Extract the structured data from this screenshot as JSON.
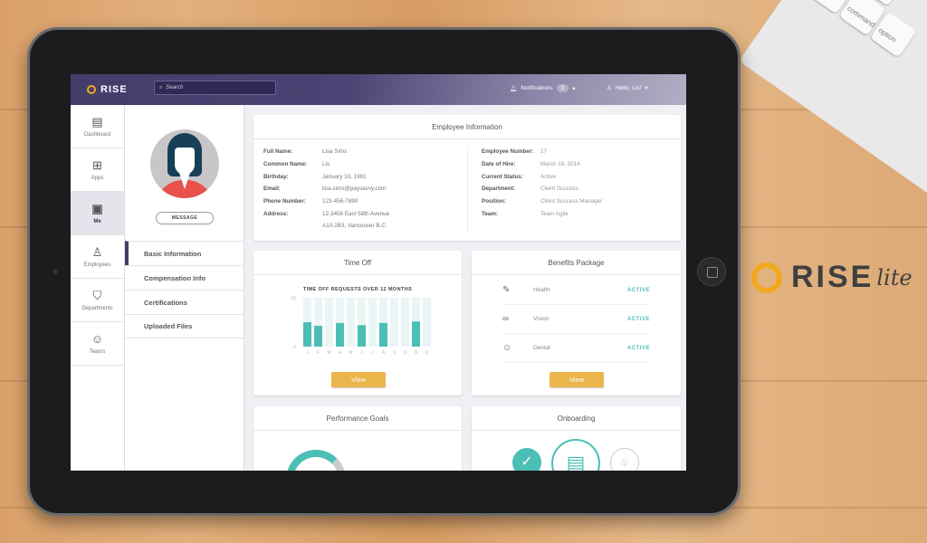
{
  "header": {
    "brand": "RISE",
    "search_placeholder": "Search",
    "notifications_label": "Notifications",
    "notifications_count": "0",
    "greeting": "Hello, Lis!"
  },
  "sidebar": {
    "items": [
      {
        "label": "Dashboard",
        "icon": "dashboard-icon",
        "glyph": "▤"
      },
      {
        "label": "Apps",
        "icon": "apps-icon",
        "glyph": "⊞"
      },
      {
        "label": "Me",
        "icon": "id-card-icon",
        "glyph": "▣",
        "active": true
      },
      {
        "label": "Employees",
        "icon": "person-icon",
        "glyph": "♙"
      },
      {
        "label": "Departments",
        "icon": "shield-icon",
        "glyph": "⛉"
      },
      {
        "label": "Teams",
        "icon": "team-icon",
        "glyph": "☺"
      }
    ]
  },
  "profile": {
    "message_button": "MESSAGE",
    "nav": [
      "Basic Information",
      "Compensation Info",
      "Certifications",
      "Uploaded Files"
    ]
  },
  "employee_info": {
    "title": "Employee Information",
    "left": [
      {
        "k": "Full Name:",
        "v": "Lisa Sims"
      },
      {
        "k": "Common Name:",
        "v": "Lis"
      },
      {
        "k": "Birthday:",
        "v": "January 10, 1991"
      },
      {
        "k": "Email:",
        "v": "lisa-sims@paysavvy.com"
      },
      {
        "k": "Phone Number:",
        "v": "123-456-7890"
      },
      {
        "k": "Address:",
        "v": "12-3456 East 58th Avenue"
      },
      {
        "k": "",
        "v": "A1A 2B3, Vancouver B.C."
      }
    ],
    "right": [
      {
        "k": "Employee Number:",
        "v": "17"
      },
      {
        "k": "Date of Hire:",
        "v": "March 18, 2014"
      },
      {
        "k": "Current Status:",
        "v": "Active"
      },
      {
        "k": "Department:",
        "v": "Client Success"
      },
      {
        "k": "Position:",
        "v": "Client Success Manager"
      },
      {
        "k": "Team:",
        "v": "Team Agile"
      }
    ]
  },
  "time_off": {
    "title": "Time Off",
    "view_label": "View"
  },
  "chart_data": {
    "type": "bar",
    "title": "TIME OFF REQUESTS OVER 12 MONTHS",
    "categories": [
      "J",
      "F",
      "M",
      "A",
      "M",
      "J",
      "J",
      "A",
      "S",
      "O",
      "N",
      "D"
    ],
    "values": [
      10,
      8.5,
      0,
      9.7,
      0,
      8.8,
      0,
      9.7,
      0,
      0,
      10.3,
      0
    ],
    "ylim": [
      0,
      20
    ],
    "yticks": [
      "0",
      "20"
    ],
    "color": "#4bbfb5"
  },
  "benefits": {
    "title": "Benefits Package",
    "view_label": "View",
    "items": [
      {
        "name": "Health",
        "status": "ACTIVE",
        "icon": "bandage-icon",
        "glyph": "✎"
      },
      {
        "name": "Vision",
        "status": "ACTIVE",
        "icon": "glasses-icon",
        "glyph": "∞"
      },
      {
        "name": "Dental",
        "status": "ACTIVE",
        "icon": "tooth-icon",
        "glyph": "☺"
      }
    ]
  },
  "performance": {
    "title": "Performance Goals"
  },
  "onboarding": {
    "title": "Onboarding"
  },
  "branding": {
    "logo": "RISE",
    "logo_suffix": "lite"
  },
  "keyboard": {
    "keys": [
      "command",
      "option"
    ]
  },
  "colors": {
    "accent": "#4bbfb5",
    "header": "#433d6b",
    "button": "#eab54a",
    "brand_orange": "#f2a81d"
  }
}
